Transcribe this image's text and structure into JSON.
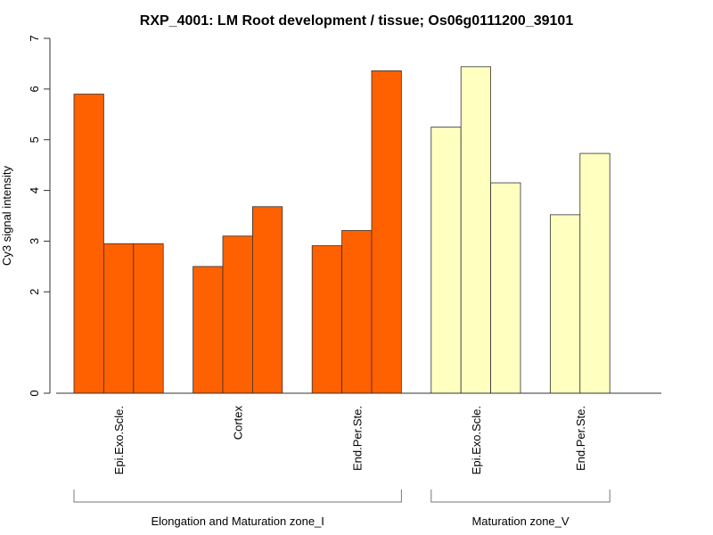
{
  "chart_data": {
    "type": "bar",
    "title": "RXP_4001: LM Root development / tissue; Os06g0111200_39101",
    "xlabel": "",
    "ylabel": "Cy3 signal intensity",
    "ylim": [
      0,
      7
    ],
    "yticks": [
      0,
      2,
      3,
      4,
      5,
      6,
      7
    ],
    "grid": false,
    "categories": [
      "Epi.Exo.Scle.",
      "Cortex",
      "End.Per.Ste.",
      "Epi.Exo.Scle.",
      "End.Per.Ste."
    ],
    "groups": [
      {
        "name": "Elongation and Maturation zone_I",
        "color": "#FF6000",
        "categories": [
          {
            "label": "Epi.Exo.Scle.",
            "values": [
              5.9,
              2.95,
              2.95
            ]
          },
          {
            "label": "Cortex",
            "values": [
              2.5,
              3.1,
              3.68
            ]
          },
          {
            "label": "End.Per.Ste.",
            "values": [
              2.91,
              3.21,
              6.36
            ]
          }
        ]
      },
      {
        "name": "Maturation zone_V",
        "color": "#FFFFC0",
        "categories": [
          {
            "label": "Epi.Exo.Scle.",
            "values": [
              5.25,
              6.44,
              4.15
            ]
          },
          {
            "label": "End.Per.Ste.",
            "values": [
              3.52,
              4.73
            ]
          }
        ]
      }
    ]
  }
}
